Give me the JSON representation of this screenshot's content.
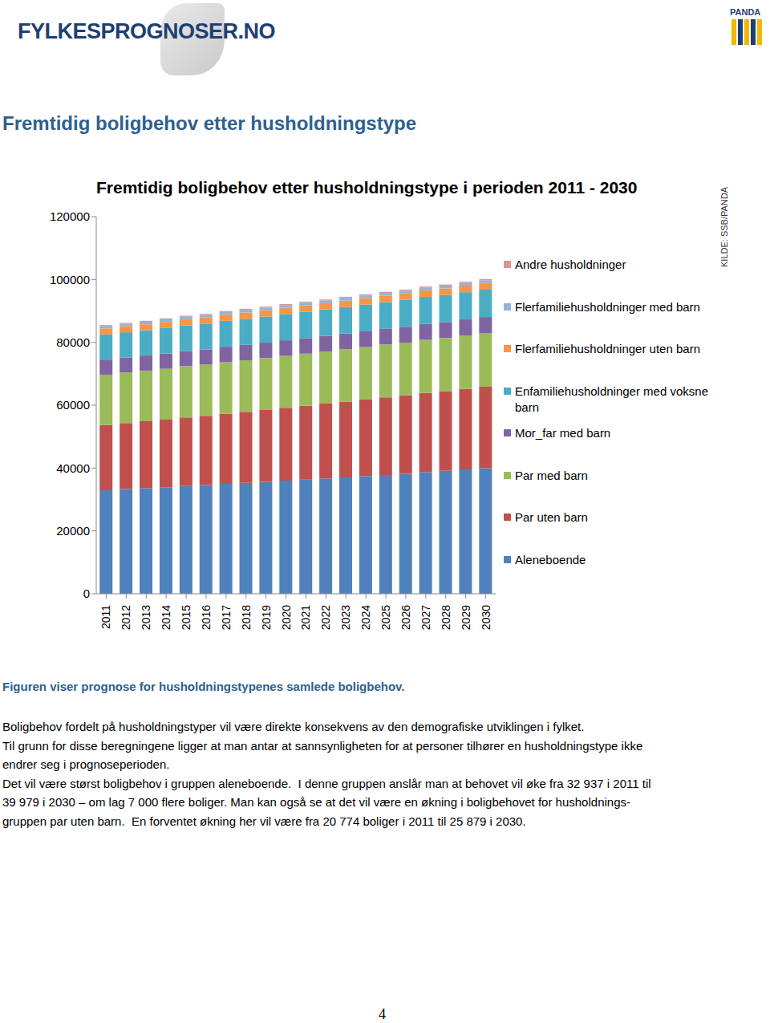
{
  "header": {
    "logo": "FYLKESPROGNOSER.NO",
    "brand": "PANDA"
  },
  "heading": "Fremtidig boligbehov etter husholdningstype",
  "chart_data": {
    "type": "bar",
    "stacked": true,
    "title": "Fremtidig boligbehov etter husholdningstype i perioden 2011 - 2030",
    "source": "KILDE: SSB/PANDA",
    "categories": [
      "2011",
      "2012",
      "2013",
      "2014",
      "2015",
      "2016",
      "2017",
      "2018",
      "2019",
      "2020",
      "2021",
      "2022",
      "2023",
      "2024",
      "2025",
      "2026",
      "2027",
      "2028",
      "2029",
      "2030"
    ],
    "series": [
      {
        "name": "Aleneboende",
        "color": "#4f81bd",
        "values": [
          32937,
          33300,
          33600,
          33900,
          34300,
          34600,
          35000,
          35300,
          35600,
          36000,
          36300,
          36700,
          37000,
          37400,
          37800,
          38200,
          38700,
          39100,
          39600,
          39979
        ]
      },
      {
        "name": "Par uten barn",
        "color": "#c0504d",
        "values": [
          20774,
          21000,
          21300,
          21500,
          21800,
          22000,
          22300,
          22600,
          22900,
          23200,
          23500,
          23800,
          24100,
          24400,
          24700,
          24900,
          25200,
          25400,
          25600,
          25879
        ]
      },
      {
        "name": "Par med barn",
        "color": "#9bbb59",
        "values": [
          16000,
          16100,
          16100,
          16200,
          16300,
          16300,
          16400,
          16400,
          16500,
          16500,
          16600,
          16600,
          16700,
          16700,
          16800,
          16800,
          16900,
          16900,
          17000,
          17100
        ]
      },
      {
        "name": "Mor_far med barn",
        "color": "#8064a2",
        "values": [
          4800,
          4800,
          4800,
          4850,
          4850,
          4850,
          4900,
          4900,
          4900,
          4950,
          4950,
          4950,
          5000,
          5000,
          5000,
          5050,
          5050,
          5050,
          5100,
          5100
        ]
      },
      {
        "name": "Enfamiliehusholdninger med voksne barn",
        "color": "#4bacc6",
        "values": [
          8000,
          8000,
          8050,
          8100,
          8150,
          8200,
          8250,
          8300,
          8300,
          8350,
          8400,
          8400,
          8450,
          8500,
          8500,
          8550,
          8600,
          8600,
          8650,
          8700
        ]
      },
      {
        "name": "Flerfamiliehusholdninger uten barn",
        "color": "#f79646",
        "values": [
          1900,
          1900,
          1900,
          1950,
          1950,
          1950,
          1950,
          2000,
          2000,
          2000,
          2000,
          2000,
          2050,
          2050,
          2050,
          2050,
          2100,
          2100,
          2100,
          2100
        ]
      },
      {
        "name": "Flerfamiliehusholdninger med barn",
        "color": "#95b3d7",
        "values": [
          800,
          800,
          800,
          810,
          820,
          830,
          840,
          850,
          850,
          860,
          860,
          870,
          870,
          880,
          880,
          890,
          890,
          900,
          900,
          900
        ]
      },
      {
        "name": "Andre husholdninger",
        "color": "#d99694",
        "values": [
          300,
          300,
          300,
          310,
          310,
          310,
          320,
          320,
          320,
          330,
          330,
          330,
          330,
          340,
          340,
          340,
          340,
          350,
          350,
          350
        ]
      }
    ],
    "ylim": [
      0,
      120000
    ],
    "yticks": [
      0,
      20000,
      40000,
      60000,
      80000,
      100000,
      120000
    ],
    "grid": false,
    "legend": "right"
  },
  "caption": "Figuren viser prognose for husholdningstypenes samlede boligbehov.",
  "paragraph_lines": [
    "Boligbehov fordelt på husholdningstyper vil være direkte konsekvens av den demografiske utviklingen i fylket.",
    "Til grunn for disse beregningene ligger at man antar at sannsynligheten for at personer tilhører en husholdningstype ikke",
    "endrer seg i prognoseperioden.",
    "Det vil være størst boligbehov i gruppen aleneboende.  I denne gruppen anslår man at behovet vil øke fra 32 937 i 2011 til",
    "39 979 i 2030 – om lag 7 000 flere boliger. Man kan også se at det vil være en økning i boligbehovet for husholdnings-",
    "gruppen par uten barn.  En forventet økning her vil være fra 20 774 boliger i 2011 til 25 879 i 2030."
  ],
  "page_number": "4"
}
